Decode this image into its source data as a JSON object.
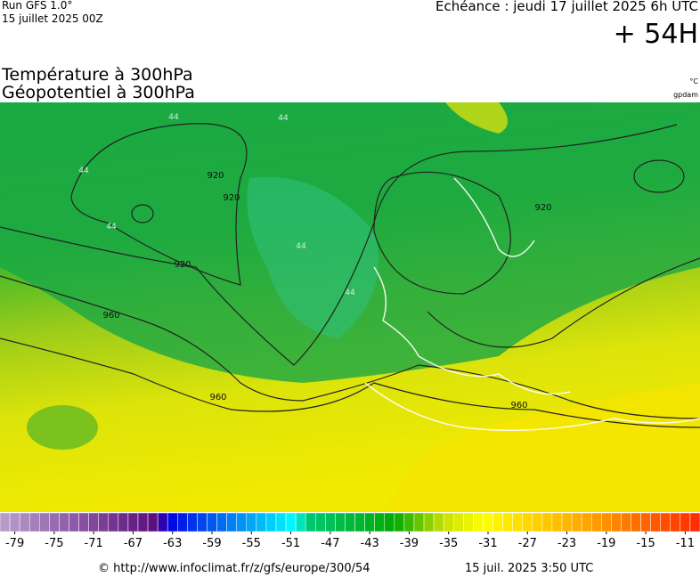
{
  "header": {
    "run": "Run GFS 1.0°",
    "run_date": "15 juillet 2025 00Z",
    "valid": "Echéance : jeudi 17 juillet 2025 6h UTC",
    "lead": "+ 54H",
    "title1": "Température à 300hPa",
    "title2": "Géopotentiel à 300hPa",
    "unit1": "°C",
    "unit2": "gpdam"
  },
  "map": {
    "contour_labels": [
      "920",
      "920",
      "920",
      "920",
      "960",
      "960",
      "960"
    ],
    "temp_labels": [
      "44",
      "44",
      "44",
      "44",
      "44",
      "44"
    ]
  },
  "colorbar": {
    "range": [
      -80,
      -9
    ],
    "ticks": [
      -79,
      -75,
      -71,
      -67,
      -63,
      -59,
      -55,
      -51,
      -47,
      -43,
      -39,
      -35,
      -31,
      -27,
      -23,
      -19,
      -15,
      -11
    ],
    "stops": [
      {
        "at": -80,
        "color": "#b9a0cc"
      },
      {
        "at": -64,
        "color": "#5a0a7a"
      },
      {
        "at": -63,
        "color": "#0000e6"
      },
      {
        "at": -50,
        "color": "#00ffff"
      },
      {
        "at": -49,
        "color": "#00c878"
      },
      {
        "at": -40,
        "color": "#00aa00"
      },
      {
        "at": -35,
        "color": "#c8e000"
      },
      {
        "at": -31,
        "color": "#ffff00"
      },
      {
        "at": -20,
        "color": "#ffa000"
      },
      {
        "at": -9,
        "color": "#ff2800"
      }
    ]
  },
  "footer": {
    "url": "© http://www.infoclimat.fr/z/gfs/europe/300/54",
    "made": "15 juil. 2025  3:50 UTC"
  }
}
